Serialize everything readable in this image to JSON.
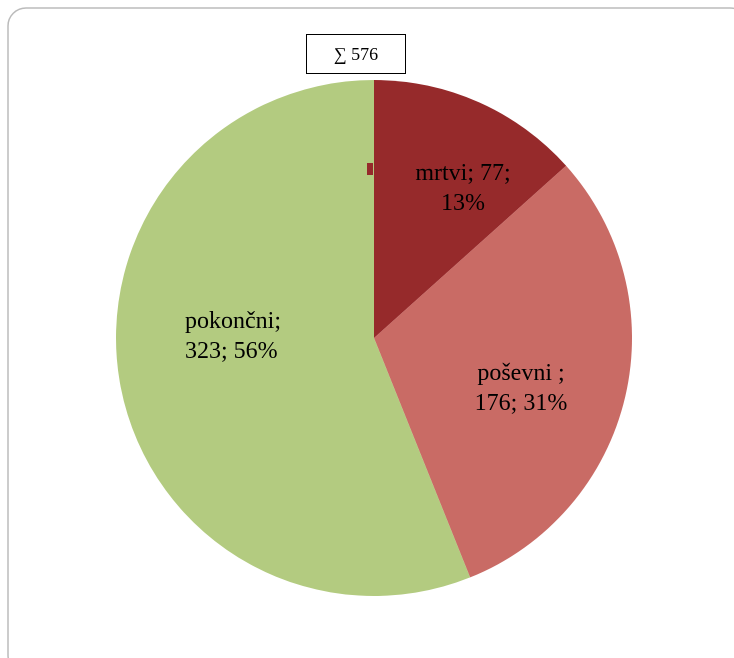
{
  "chart_data": {
    "type": "pie",
    "categories": [
      "mrtvi",
      "poševni",
      "pokončni"
    ],
    "values": [
      77,
      176,
      323
    ],
    "value_labels": [
      "mrtvi; 77; 13%",
      "poševni ; 176; 31%",
      "pokončni; 323; 56%"
    ],
    "colors": [
      "#962a2b",
      "#c96b65",
      "#b3cb80"
    ],
    "annotation": "∑ 576"
  }
}
